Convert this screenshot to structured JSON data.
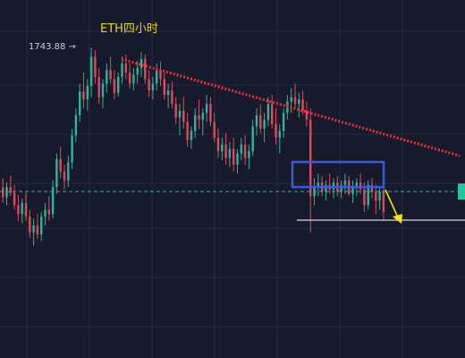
{
  "chart_title": "ETH四小时",
  "high_label": "1743.88 →",
  "colors": {
    "background": "#161a2b",
    "grid": "#242a3e",
    "up": "#2fb39a",
    "down": "#e0495c",
    "title": "#e6d21a",
    "trendline": "#e8313d",
    "box": "#3a5bd9",
    "arrow": "#f2e21e",
    "dashed": "#2fb3a6",
    "support": "#d9dce3",
    "label": "#c9cfdc",
    "right_tag": "#27c39a"
  },
  "chart_data": {
    "type": "candlestick",
    "title": "ETH四小时",
    "high_marker": 1743.88,
    "candles": [
      [
        1620,
        1628,
        1606,
        1611
      ],
      [
        1611,
        1624,
        1604,
        1620
      ],
      [
        1620,
        1630,
        1612,
        1615
      ],
      [
        1615,
        1622,
        1600,
        1604
      ],
      [
        1604,
        1613,
        1590,
        1596
      ],
      [
        1596,
        1610,
        1588,
        1606
      ],
      [
        1606,
        1615,
        1590,
        1594
      ],
      [
        1594,
        1600,
        1575,
        1580
      ],
      [
        1580,
        1592,
        1568,
        1586
      ],
      [
        1586,
        1596,
        1574,
        1578
      ],
      [
        1578,
        1598,
        1572,
        1594
      ],
      [
        1594,
        1606,
        1586,
        1600
      ],
      [
        1600,
        1612,
        1590,
        1596
      ],
      [
        1596,
        1626,
        1592,
        1620
      ],
      [
        1620,
        1650,
        1614,
        1645
      ],
      [
        1645,
        1656,
        1628,
        1634
      ],
      [
        1634,
        1640,
        1618,
        1626
      ],
      [
        1626,
        1648,
        1620,
        1642
      ],
      [
        1642,
        1672,
        1636,
        1666
      ],
      [
        1666,
        1690,
        1660,
        1684
      ],
      [
        1684,
        1712,
        1678,
        1705
      ],
      [
        1705,
        1722,
        1690,
        1698
      ],
      [
        1698,
        1716,
        1688,
        1710
      ],
      [
        1710,
        1744,
        1700,
        1736
      ],
      [
        1736,
        1742,
        1712,
        1718
      ],
      [
        1718,
        1726,
        1694,
        1700
      ],
      [
        1700,
        1716,
        1690,
        1712
      ],
      [
        1712,
        1730,
        1704,
        1724
      ],
      [
        1724,
        1736,
        1712,
        1716
      ],
      [
        1716,
        1724,
        1698,
        1704
      ],
      [
        1704,
        1722,
        1700,
        1718
      ],
      [
        1718,
        1736,
        1712,
        1730
      ],
      [
        1730,
        1738,
        1716,
        1722
      ],
      [
        1722,
        1730,
        1708,
        1712
      ],
      [
        1712,
        1726,
        1706,
        1720
      ],
      [
        1720,
        1732,
        1712,
        1726
      ],
      [
        1726,
        1740,
        1718,
        1734
      ],
      [
        1734,
        1738,
        1712,
        1716
      ],
      [
        1716,
        1724,
        1700,
        1706
      ],
      [
        1706,
        1718,
        1698,
        1712
      ],
      [
        1712,
        1730,
        1706,
        1724
      ],
      [
        1724,
        1732,
        1710,
        1716
      ],
      [
        1716,
        1722,
        1698,
        1702
      ],
      [
        1702,
        1712,
        1690,
        1706
      ],
      [
        1706,
        1714,
        1690,
        1694
      ],
      [
        1694,
        1700,
        1676,
        1682
      ],
      [
        1682,
        1694,
        1666,
        1688
      ],
      [
        1688,
        1700,
        1672,
        1678
      ],
      [
        1678,
        1686,
        1656,
        1662
      ],
      [
        1662,
        1674,
        1654,
        1670
      ],
      [
        1670,
        1690,
        1664,
        1684
      ],
      [
        1684,
        1698,
        1672,
        1680
      ],
      [
        1680,
        1690,
        1666,
        1686
      ],
      [
        1686,
        1702,
        1678,
        1694
      ],
      [
        1694,
        1700,
        1674,
        1678
      ],
      [
        1678,
        1686,
        1660,
        1664
      ],
      [
        1664,
        1672,
        1646,
        1652
      ],
      [
        1652,
        1664,
        1644,
        1658
      ],
      [
        1658,
        1668,
        1640,
        1646
      ],
      [
        1646,
        1660,
        1638,
        1654
      ],
      [
        1654,
        1664,
        1634,
        1640
      ],
      [
        1640,
        1654,
        1632,
        1650
      ],
      [
        1650,
        1664,
        1644,
        1658
      ],
      [
        1658,
        1666,
        1640,
        1646
      ],
      [
        1646,
        1658,
        1636,
        1652
      ],
      [
        1652,
        1680,
        1648,
        1674
      ],
      [
        1674,
        1690,
        1666,
        1684
      ],
      [
        1684,
        1694,
        1668,
        1672
      ],
      [
        1672,
        1686,
        1660,
        1680
      ],
      [
        1680,
        1700,
        1674,
        1694
      ],
      [
        1694,
        1702,
        1672,
        1676
      ],
      [
        1676,
        1690,
        1658,
        1664
      ],
      [
        1664,
        1676,
        1650,
        1670
      ],
      [
        1670,
        1690,
        1664,
        1686
      ],
      [
        1686,
        1702,
        1680,
        1696
      ],
      [
        1696,
        1708,
        1686,
        1700
      ],
      [
        1700,
        1712,
        1690,
        1694
      ],
      [
        1694,
        1704,
        1682,
        1698
      ],
      [
        1698,
        1706,
        1684,
        1688
      ],
      [
        1688,
        1696,
        1674,
        1680
      ],
      [
        1680,
        1690,
        1580,
        1612
      ],
      [
        1612,
        1628,
        1604,
        1620
      ],
      [
        1620,
        1632,
        1612,
        1624
      ],
      [
        1624,
        1630,
        1612,
        1616
      ],
      [
        1616,
        1626,
        1608,
        1622
      ],
      [
        1622,
        1632,
        1614,
        1618
      ],
      [
        1618,
        1628,
        1610,
        1624
      ],
      [
        1624,
        1630,
        1612,
        1616
      ],
      [
        1616,
        1626,
        1610,
        1622
      ],
      [
        1622,
        1632,
        1614,
        1626
      ],
      [
        1626,
        1630,
        1612,
        1614
      ],
      [
        1614,
        1626,
        1606,
        1620
      ],
      [
        1620,
        1628,
        1612,
        1624
      ],
      [
        1624,
        1632,
        1614,
        1618
      ],
      [
        1618,
        1624,
        1598,
        1604
      ],
      [
        1604,
        1626,
        1600,
        1622
      ],
      [
        1622,
        1628,
        1610,
        1616
      ],
      [
        1616,
        1622,
        1596,
        1608
      ],
      [
        1608,
        1620,
        1600,
        1616
      ],
      [
        1616,
        1624,
        1590,
        1598
      ]
    ]
  }
}
